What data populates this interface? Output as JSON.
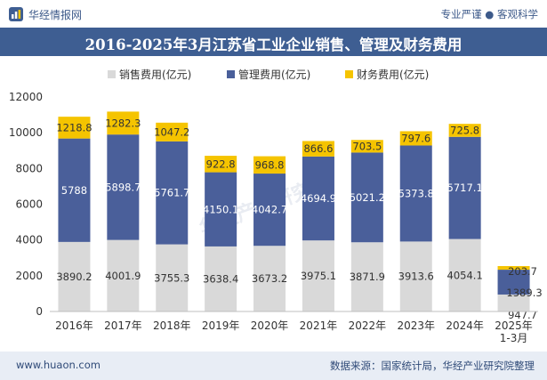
{
  "header": {
    "logo_text": "华经情报网",
    "tagline": "专业严谨 ● 客观科学"
  },
  "title": "2016-2025年3月江苏省工业企业销售、管理及财务费用",
  "footer": {
    "website": "www.huaon.com",
    "source": "数据来源：国家统计局，华经产业研究院整理"
  },
  "watermark": "华经产业研究院",
  "colors": {
    "sales": "#d9d9d9",
    "admin": "#4a5f9a",
    "finance": "#f5c400",
    "header_bar": "#3e5e92"
  },
  "chart_data": {
    "type": "bar",
    "stacked": true,
    "categories": [
      "2016年",
      "2017年",
      "2018年",
      "2019年",
      "2020年",
      "2021年",
      "2022年",
      "2023年",
      "2024年",
      "2025年\n1-3月"
    ],
    "series": [
      {
        "name": "销售费用(亿元)",
        "values": [
          3890.2,
          4001.9,
          3755.3,
          3638.4,
          3673.2,
          3975.1,
          3871.9,
          3913.6,
          4054.1,
          947.7
        ]
      },
      {
        "name": "管理费用(亿元)",
        "values": [
          5788,
          5898.7,
          5761.7,
          4150.1,
          4042.7,
          4694.9,
          5021.2,
          5373.8,
          5717.1,
          1389.3
        ]
      },
      {
        "name": "财务费用(亿元)",
        "values": [
          1218.8,
          1282.3,
          1047.2,
          922.8,
          968.8,
          866.6,
          703.5,
          797.6,
          725.8,
          203.7
        ]
      }
    ],
    "ylim": [
      0,
      12000
    ],
    "yticks": [
      0,
      2000,
      4000,
      6000,
      8000,
      10000,
      12000
    ],
    "legend_position": "top",
    "grid": false
  }
}
